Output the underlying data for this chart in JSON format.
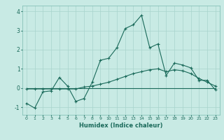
{
  "xlabel": "Humidex (Indice chaleur)",
  "xlim": [
    -0.5,
    23.5
  ],
  "ylim": [
    -1.4,
    4.3
  ],
  "yticks": [
    -1,
    0,
    1,
    2,
    3,
    4
  ],
  "xticks": [
    0,
    1,
    2,
    3,
    4,
    5,
    6,
    7,
    8,
    9,
    10,
    11,
    12,
    13,
    14,
    15,
    16,
    17,
    18,
    19,
    20,
    21,
    22,
    23
  ],
  "background_color": "#c8eae4",
  "grid_color": "#a8d4cc",
  "line_color": "#1a6a5a",
  "line1_x": [
    0,
    1,
    2,
    3,
    4,
    5,
    6,
    7,
    8,
    9,
    10,
    11,
    12,
    13,
    14,
    15,
    16,
    17,
    18,
    19,
    20,
    21,
    22,
    23
  ],
  "line1_y": [
    -0.8,
    -1.05,
    -0.2,
    -0.15,
    0.55,
    0.1,
    -0.7,
    -0.55,
    0.3,
    1.45,
    1.55,
    2.1,
    3.1,
    3.3,
    3.8,
    2.1,
    2.3,
    0.65,
    1.3,
    1.2,
    1.05,
    0.4,
    0.4,
    -0.1
  ],
  "line2_x": [
    0,
    1,
    2,
    3,
    4,
    5,
    6,
    7,
    8,
    9,
    10,
    11,
    12,
    13,
    14,
    15,
    16,
    17,
    18,
    19,
    20,
    21,
    22,
    23
  ],
  "line2_y": [
    -0.05,
    -0.05,
    -0.05,
    -0.05,
    -0.05,
    -0.05,
    -0.05,
    0.05,
    0.1,
    0.2,
    0.3,
    0.45,
    0.6,
    0.75,
    0.85,
    0.95,
    1.0,
    0.85,
    0.95,
    0.9,
    0.75,
    0.5,
    0.3,
    0.1
  ],
  "line3_x": [
    0,
    1,
    2,
    3,
    4,
    5,
    6,
    7,
    8,
    9,
    10,
    11,
    12,
    13,
    14,
    15,
    16,
    17,
    18,
    19,
    20,
    21,
    22,
    23
  ],
  "line3_y": [
    0.0,
    0.0,
    0.0,
    0.0,
    0.0,
    0.0,
    0.0,
    0.0,
    0.0,
    0.0,
    0.0,
    0.0,
    0.0,
    0.0,
    0.0,
    0.0,
    0.0,
    0.0,
    0.0,
    0.0,
    0.0,
    0.0,
    0.0,
    0.0
  ]
}
